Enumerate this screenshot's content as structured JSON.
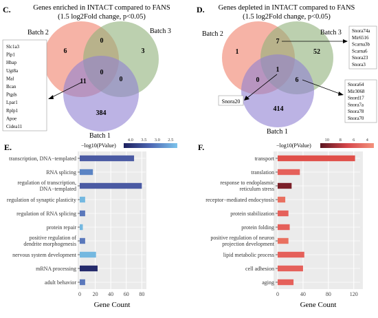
{
  "panels": [
    {
      "label": "C.",
      "title_line1": "Genes enriched in INTACT compared to FANS",
      "title_line2": "(1.5 log2Fold change, p<0.05)",
      "sets": [
        "Batch 2",
        "Batch 3",
        "Batch 1"
      ],
      "colors": [
        "#f0806a",
        "#8fb07a",
        "#8f80d2"
      ],
      "counts": {
        "only_b2": "6",
        "b2_b3": "0",
        "only_b3": "3",
        "b2_b1": "11",
        "all": "0",
        "b3_b1": "0",
        "only_b1": "384"
      },
      "callout_genes": [
        "Slc1a3",
        "Plp1",
        "Hbap",
        "Ugt8a",
        "Mal",
        "Bcan",
        "Ptgds",
        "Lpar1",
        "Rplp1",
        "Apoe",
        "Cidea11"
      ]
    },
    {
      "label": "D.",
      "title_line1": "Genes depleted in INTACT compared to FANS",
      "title_line2": "(1.5 log2Fold change, p<0.05)",
      "sets": [
        "Batch 2",
        "Batch 3",
        "Batch 1"
      ],
      "colors": [
        "#f0806a",
        "#8fb07a",
        "#8f80d2"
      ],
      "counts": {
        "only_b2": "1",
        "b2_b3": "7",
        "only_b3": "52",
        "b2_b1": "0",
        "all": "1",
        "b3_b1": "6",
        "only_b1": "414"
      },
      "callout_top": [
        "Snora74a",
        "Mir6516",
        "Scarna3b",
        "Scarna6",
        "Snora23",
        "Snora3"
      ],
      "callout_right": [
        "Snora64",
        "Mir3068",
        "Snord17",
        "Snora7a",
        "Snora78",
        "Snora70"
      ],
      "callout_single": "Snora20"
    }
  ],
  "charts": [
    {
      "label": "E.",
      "legend_title": "−log10(PValue)",
      "legend_ticks": [
        "4.0",
        "3.5",
        "3.0",
        "2.5"
      ],
      "chart_data": {
        "type": "bar",
        "orientation": "horizontal",
        "xlabel": "Gene Count",
        "xticks": [
          "0",
          "20",
          "40",
          "60",
          "80"
        ],
        "xlim": [
          0,
          85
        ],
        "categories": [
          {
            "line1": "transcription, DNA−templated",
            "line2": ""
          },
          {
            "line1": "RNA splicing",
            "line2": ""
          },
          {
            "line1": "regulation of transcription,",
            "line2": "DNA−templated"
          },
          {
            "line1": "regulation of synaptic plasticity",
            "line2": ""
          },
          {
            "line1": "regulation of RNA splicing",
            "line2": ""
          },
          {
            "line1": "protein repair",
            "line2": ""
          },
          {
            "line1": "positive regulation of",
            "line2": "dendrite morphogenesis"
          },
          {
            "line1": "nervous system development",
            "line2": ""
          },
          {
            "line1": "mRNA processing",
            "line2": ""
          },
          {
            "line1": "adult behavior",
            "line2": ""
          }
        ],
        "values": [
          70,
          17,
          80,
          7,
          7,
          4,
          7,
          21,
          23,
          7
        ],
        "colors": [
          "#4a5aa3",
          "#5b84c4",
          "#4a5aa3",
          "#74b8e0",
          "#5a78bb",
          "#74b8e0",
          "#5a78bb",
          "#74b8e0",
          "#242a6b",
          "#5a78bb"
        ]
      }
    },
    {
      "label": "F.",
      "legend_title": "−log10(PValue)",
      "legend_ticks": [
        "10",
        "8",
        "6",
        "4"
      ],
      "chart_data": {
        "type": "bar",
        "orientation": "horizontal",
        "xlabel": "Gene Count",
        "xticks": [
          "0",
          "40",
          "80",
          "120"
        ],
        "xlim": [
          0,
          130
        ],
        "categories": [
          {
            "line1": "transport",
            "line2": ""
          },
          {
            "line1": "translation",
            "line2": ""
          },
          {
            "line1": "response to endoplasmic",
            "line2": "reticulum stress"
          },
          {
            "line1": "receptor−mediated endocytosis",
            "line2": ""
          },
          {
            "line1": "protein stabilization",
            "line2": ""
          },
          {
            "line1": "protein folding",
            "line2": ""
          },
          {
            "line1": "positive regulation of neuron",
            "line2": "projection development"
          },
          {
            "line1": "lipid metabolic process",
            "line2": ""
          },
          {
            "line1": "cell adhesion",
            "line2": ""
          },
          {
            "line1": "aging",
            "line2": ""
          }
        ],
        "values": [
          122,
          35,
          22,
          12,
          17,
          19,
          17,
          42,
          40,
          25
        ],
        "colors": [
          "#e0504a",
          "#e5605a",
          "#7a1f28",
          "#e97060",
          "#e5605a",
          "#e5605a",
          "#e97060",
          "#e5605a",
          "#e5605a",
          "#e5605a"
        ]
      }
    }
  ]
}
